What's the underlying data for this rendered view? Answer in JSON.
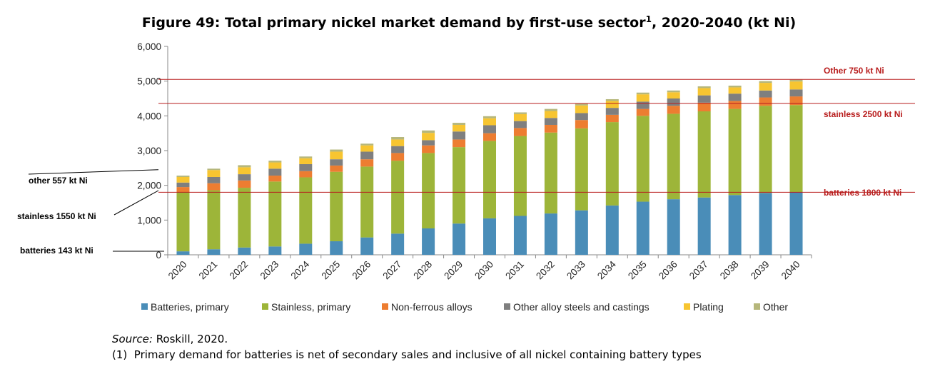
{
  "title": {
    "prefix": "Figure 49: Total primary nickel market demand by first-use sector",
    "superscript": "1",
    "suffix": ", 2020-2040 (kt Ni)"
  },
  "colors": {
    "batteries": "#4a8db8",
    "stainless": "#9db539",
    "non_ferrous": "#ed7d31",
    "other_alloy": "#7f7f7f",
    "plating": "#f7c531",
    "other": "#b6b77b",
    "annotation_red": "#b81c1c"
  },
  "chart_data": {
    "type": "bar",
    "stacked": true,
    "categories": [
      "2020",
      "2021",
      "2022",
      "2023",
      "2024",
      "2025",
      "2026",
      "2027",
      "2028",
      "2029",
      "2030",
      "2031",
      "2032",
      "2033",
      "2034",
      "2035",
      "2036",
      "2037",
      "2038",
      "2039",
      "2040"
    ],
    "series": [
      {
        "name": "Batteries, primary",
        "color_key": "batteries",
        "values": [
          100,
          160,
          210,
          240,
          320,
          390,
          500,
          610,
          760,
          900,
          1050,
          1120,
          1190,
          1280,
          1420,
          1530,
          1600,
          1650,
          1720,
          1780,
          1800
        ]
      },
      {
        "name": "Stainless, primary",
        "color_key": "stainless",
        "values": [
          1700,
          1700,
          1720,
          1870,
          1910,
          2000,
          2040,
          2100,
          2170,
          2200,
          2230,
          2300,
          2330,
          2360,
          2400,
          2470,
          2460,
          2480,
          2480,
          2510,
          2510
        ]
      },
      {
        "name": "Non-ferrous alloys",
        "color_key": "non_ferrous",
        "values": [
          150,
          200,
          210,
          170,
          180,
          180,
          210,
          220,
          220,
          220,
          220,
          230,
          220,
          240,
          210,
          200,
          230,
          250,
          230,
          240,
          250
        ]
      },
      {
        "name": "Other alloy steels and castings",
        "color_key": "other_alloy",
        "values": [
          130,
          180,
          180,
          200,
          200,
          180,
          220,
          200,
          150,
          230,
          230,
          200,
          200,
          200,
          200,
          210,
          210,
          210,
          210,
          200,
          200
        ]
      },
      {
        "name": "Plating",
        "color_key": "plating",
        "values": [
          160,
          200,
          200,
          180,
          170,
          220,
          180,
          190,
          210,
          190,
          200,
          200,
          200,
          220,
          200,
          210,
          180,
          210,
          180,
          220,
          230
        ]
      },
      {
        "name": "Other",
        "color_key": "other",
        "values": [
          40,
          40,
          60,
          50,
          50,
          60,
          50,
          70,
          70,
          60,
          60,
          50,
          60,
          50,
          50,
          50,
          50,
          50,
          50,
          50,
          50
        ]
      }
    ],
    "ylim": [
      0,
      6000
    ],
    "yticks": [
      0,
      1000,
      2000,
      3000,
      4000,
      5000,
      6000
    ],
    "ytick_labels": [
      "0",
      "1,000",
      "2,000",
      "3,000",
      "4,000",
      "5,000",
      "6,000"
    ],
    "xlabel": "",
    "ylabel": "",
    "grid": false,
    "legend_position": "bottom",
    "annotations_left": [
      {
        "text": "other 557 kt Ni",
        "value": 2450
      },
      {
        "text": "stainless 1550 kt Ni",
        "value": 1850
      },
      {
        "text": "batteries 143 kt Ni",
        "value": 0
      }
    ],
    "annotations_right": [
      {
        "text": "Other  750 kt Ni",
        "value": 5050
      },
      {
        "text": "stainless 2500 kt Ni",
        "value": 4360
      },
      {
        "text": "batteries 1800 kt Ni",
        "value": 1800
      }
    ]
  },
  "source": {
    "label": "Source:",
    "text": "Roskill, 2020.",
    "footnote_marker": "(1)",
    "footnote_text": "Primary demand for batteries is net of secondary sales and inclusive of all nickel containing battery types"
  }
}
